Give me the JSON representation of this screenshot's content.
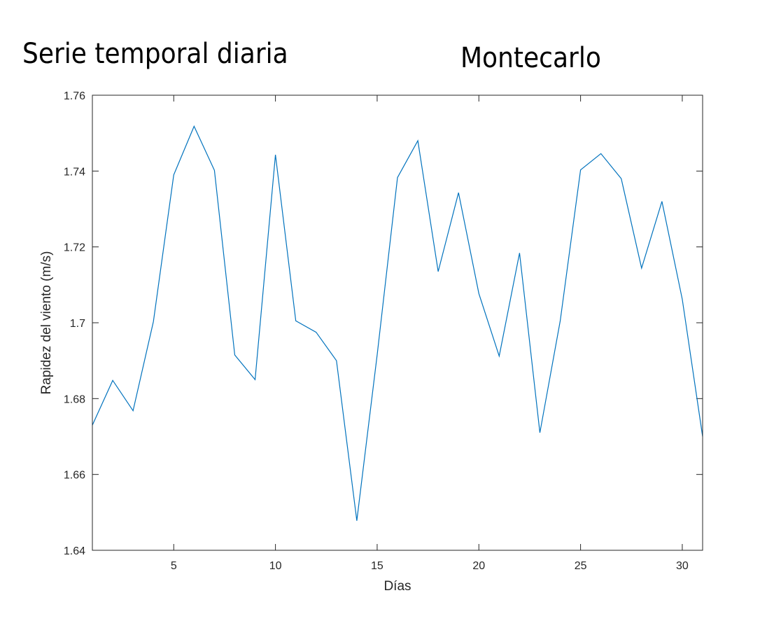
{
  "titles": {
    "left": "Serie temporal diaria",
    "right": "Montecarlo"
  },
  "colors": {
    "line": "#0072BD",
    "axes": "#262626"
  },
  "chart_data": {
    "type": "line",
    "xlabel": "Días",
    "ylabel": "Rapidez del viento (m/s)",
    "xlim": [
      1,
      31
    ],
    "ylim": [
      1.64,
      1.76
    ],
    "xticks": [
      5,
      10,
      15,
      20,
      25,
      30
    ],
    "yticks": [
      1.64,
      1.66,
      1.68,
      1.7,
      1.72,
      1.74,
      1.76
    ],
    "grid": false,
    "series": [
      {
        "x": [
          1,
          2,
          3,
          4,
          5,
          6,
          7,
          8,
          9,
          10,
          11,
          12,
          13,
          14,
          15,
          16,
          17,
          18,
          19,
          20,
          21,
          22,
          23,
          24,
          25,
          26,
          27,
          28,
          29,
          30,
          31
        ],
        "values": [
          1.673,
          1.6848,
          1.6768,
          1.7003,
          1.739,
          1.7518,
          1.7402,
          1.6915,
          1.685,
          1.7443,
          1.7005,
          1.6975,
          1.69,
          1.6478,
          1.6915,
          1.7383,
          1.748,
          1.7135,
          1.7343,
          1.7077,
          1.6912,
          1.7184,
          1.671,
          1.7005,
          1.7403,
          1.7446,
          1.738,
          1.7144,
          1.732,
          1.7062,
          1.67
        ]
      }
    ]
  }
}
